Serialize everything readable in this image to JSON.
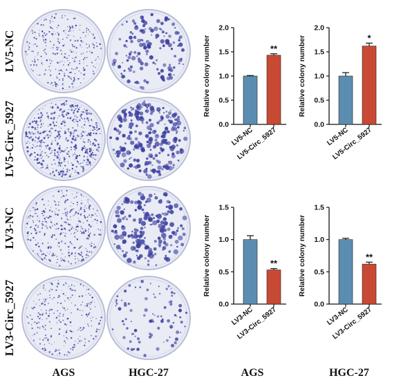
{
  "row_labels": [
    "LV5-NC",
    "LV5-Circ_5927",
    "LV3-NC",
    "LV3-Circ_5927"
  ],
  "column_labels": [
    "AGS",
    "HGC-27",
    "AGS",
    "HGC-27"
  ],
  "colors": {
    "plate_bg": "#e9ebf5",
    "plate_rim": "#b8bdd6",
    "colony": "#3b3f9e",
    "bar_nc": "#5b8db0",
    "bar_circ": "#c94a34",
    "axis": "#111111"
  },
  "chart_data": [
    {
      "type": "bar",
      "categories": [
        "LV5-NC",
        "LV5-Circ_5927"
      ],
      "values": [
        1.0,
        1.43
      ],
      "errors": [
        0.01,
        0.03
      ],
      "significance": [
        "",
        "**"
      ],
      "ylabel": "Relative colony number",
      "ylim": [
        0,
        2.0
      ],
      "yticks": [
        "0.0",
        "0.5",
        "1.0",
        "1.5",
        "2.0"
      ]
    },
    {
      "type": "bar",
      "categories": [
        "LV5-NC",
        "LV5-Circ_5927"
      ],
      "values": [
        1.0,
        1.62
      ],
      "errors": [
        0.07,
        0.06
      ],
      "significance": [
        "",
        "*"
      ],
      "ylabel": "Relative colony number",
      "ylim": [
        0,
        2.0
      ],
      "yticks": [
        "0.0",
        "0.5",
        "1.0",
        "1.5",
        "2.0"
      ]
    },
    {
      "type": "bar",
      "categories": [
        "LV3-NC",
        "LV3-Circ_5927"
      ],
      "values": [
        1.0,
        0.53
      ],
      "errors": [
        0.06,
        0.02
      ],
      "significance": [
        "",
        "**"
      ],
      "ylabel": "Relative colony number",
      "ylim": [
        0,
        1.5
      ],
      "yticks": [
        "0.0",
        "0.5",
        "1.0",
        "1.5"
      ]
    },
    {
      "type": "bar",
      "categories": [
        "LV3-NC",
        "LV3-Circ_5927"
      ],
      "values": [
        1.0,
        0.62
      ],
      "errors": [
        0.02,
        0.03
      ],
      "significance": [
        "",
        "**"
      ],
      "ylabel": "Relative colony number",
      "ylim": [
        0,
        1.5
      ],
      "yticks": [
        "0.0",
        "0.5",
        "1.0",
        "1.5"
      ]
    }
  ],
  "plates": [
    {
      "density": 300,
      "size": [
        0.5,
        1.3
      ]
    },
    {
      "density": 140,
      "size": [
        1.0,
        3.2
      ]
    },
    {
      "density": 520,
      "size": [
        0.5,
        1.6
      ]
    },
    {
      "density": 230,
      "size": [
        1.0,
        3.6
      ]
    },
    {
      "density": 380,
      "size": [
        0.5,
        1.4
      ]
    },
    {
      "density": 190,
      "size": [
        1.0,
        3.8
      ]
    },
    {
      "density": 260,
      "size": [
        0.5,
        1.3
      ]
    },
    {
      "density": 90,
      "size": [
        0.8,
        2.6
      ]
    }
  ]
}
